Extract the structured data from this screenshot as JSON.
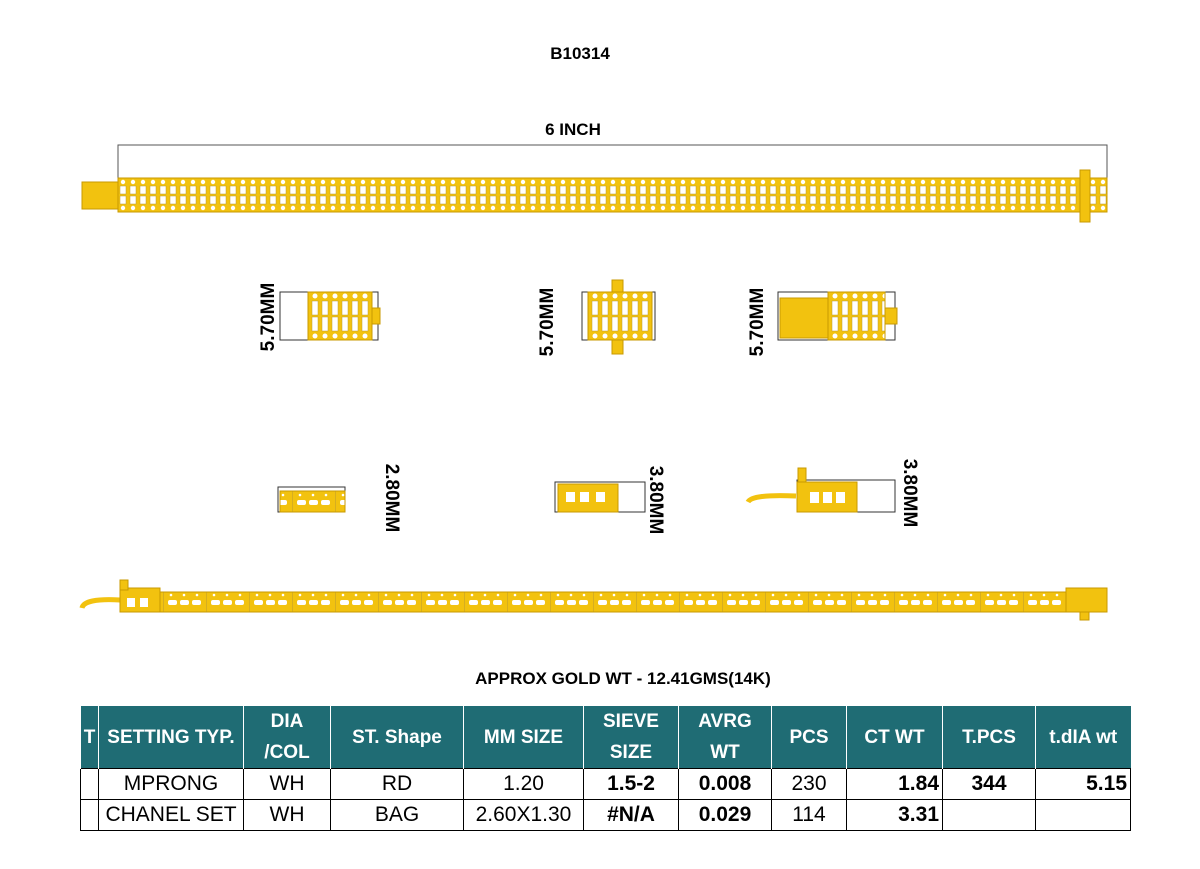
{
  "document": {
    "title": "B10314",
    "length_label": "6 INCH",
    "top_view_labels": [
      "5.70MM",
      "5.70MM",
      "5.70MM"
    ],
    "side_view_labels": [
      "2.80MM",
      "3.80MM",
      "3.80MM"
    ],
    "gold_weight": "APPROX GOLD WT - 12.41GMS(14K)"
  },
  "table": {
    "headers": [
      [
        "T"
      ],
      [
        "SETTING TYP."
      ],
      [
        "DIA",
        "/COL"
      ],
      [
        "ST. Shape"
      ],
      [
        "MM SIZE"
      ],
      [
        "SIEVE",
        "SIZE"
      ],
      [
        "AVRG",
        "WT"
      ],
      [
        "PCS"
      ],
      [
        "CT WT"
      ],
      [
        "T.PCS"
      ],
      [
        "t.dIA wt"
      ]
    ],
    "rows": [
      [
        "MPRONG",
        "WH",
        "RD",
        "1.20",
        "1.5-2",
        "0.008",
        "230",
        "1.84",
        "344",
        "5.15"
      ],
      [
        "CHANEL SET",
        "WH",
        "BAG",
        "2.60X1.30",
        "#N/A",
        "0.029",
        "114",
        "3.31"
      ]
    ]
  }
}
